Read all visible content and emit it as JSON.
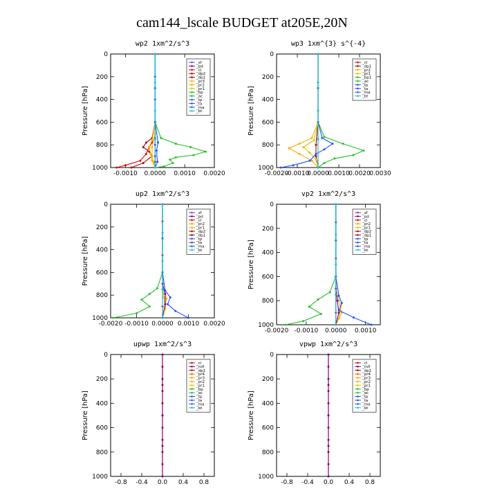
{
  "title": "cam144_lscale  BUDGET at205E,20N",
  "chart_data": [
    {
      "type": "line",
      "title": "wp2  1xm^2/s^3",
      "ylabel": "Pressure [hPa]",
      "xlim": [
        -0.0015,
        0.002
      ],
      "ylim": [
        1000,
        0
      ],
      "xticks": [
        -0.001,
        0,
        0.001,
        0.002
      ],
      "xtick_labels": [
        "-0.0010",
        "0.0000",
        "0.0010",
        "0.0020"
      ],
      "yticks": [
        0,
        200,
        400,
        600,
        800,
        1000
      ],
      "ytick_labels": [
        "0",
        "200",
        "400",
        "600",
        "800",
        "1000"
      ],
      "legend": [
        "_sf",
        "_pd",
        "_cl",
        "_dp2",
        "_dp1",
        "_pr3",
        "_pr2",
        "_pr1",
        "_bp",
        "_ac",
        "_tp",
        "_ta",
        "_ma",
        "_bt"
      ],
      "legend_position": "top-right",
      "series": [
        {
          "name": "_pd",
          "color": "#800080",
          "x": [
            0,
            0,
            0,
            0,
            0,
            0,
            0,
            0,
            0
          ],
          "y": [
            0,
            200,
            400,
            600,
            700,
            800,
            900,
            950,
            1000
          ]
        },
        {
          "name": "_cl",
          "color": "#e00000",
          "x": [
            0,
            0,
            0,
            0,
            -0.0001,
            -0.0002,
            -0.0003,
            -0.0005,
            -0.001,
            -0.0013
          ],
          "y": [
            0,
            300,
            600,
            740,
            780,
            820,
            880,
            940,
            980,
            1000
          ]
        },
        {
          "name": "_dp2",
          "color": "#b00000",
          "x": [
            0,
            0,
            0,
            -0.0001,
            -0.0003,
            -0.0004,
            -0.0002,
            -0.0001,
            -0.0004,
            -0.0008
          ],
          "y": [
            0,
            300,
            600,
            740,
            780,
            820,
            860,
            900,
            960,
            1000
          ]
        },
        {
          "name": "_pr3",
          "color": "#ffa500",
          "x": [
            0,
            0,
            0,
            -0.0001,
            -0.0002,
            -0.00015,
            -0.0001,
            0
          ],
          "y": [
            0,
            300,
            600,
            760,
            820,
            880,
            940,
            1000
          ]
        },
        {
          "name": "_pr2",
          "color": "#e0c000",
          "x": [
            0,
            0,
            0,
            -0.0001,
            -0.0001,
            0
          ],
          "y": [
            0,
            300,
            700,
            820,
            900,
            1000
          ]
        },
        {
          "name": "_pr1",
          "color": "#20c020",
          "x": [
            0,
            0,
            0,
            0.0002,
            0.0007,
            0.0012,
            0.0017,
            0.0013,
            0.0007,
            0.0005,
            0.0006,
            0.0003,
            0
          ],
          "y": [
            0,
            300,
            600,
            740,
            790,
            820,
            860,
            890,
            910,
            930,
            960,
            990,
            1000
          ]
        },
        {
          "name": "_ac",
          "color": "#1e50ff",
          "x": [
            0,
            0,
            0,
            0.0001,
            5e-05,
            8e-05,
            0
          ],
          "y": [
            0,
            300,
            600,
            780,
            850,
            950,
            1000
          ]
        },
        {
          "name": "_bt",
          "color": "#00c8e8",
          "x": [
            0,
            0,
            0,
            0,
            0
          ],
          "y": [
            0,
            250,
            500,
            750,
            1000
          ]
        }
      ]
    },
    {
      "type": "line",
      "title": "wp3  1xm^{3} s^{-4}",
      "ylabel": "Pressure [hPa]",
      "xlim": [
        -0.002,
        0.003
      ],
      "ylim": [
        1000,
        0
      ],
      "xticks": [
        -0.002,
        -0.001,
        0,
        0.001,
        0.002,
        0.003
      ],
      "xtick_labels": [
        "-0.0020",
        "-0.0010",
        "0.0000",
        "0.0010",
        "0.0020",
        "0.0030"
      ],
      "yticks": [
        0,
        200,
        400,
        600,
        800,
        1000
      ],
      "ytick_labels": [
        "0",
        "200",
        "400",
        "600",
        "800",
        "1000"
      ],
      "legend": [
        "_cl",
        "_dp1",
        "_pr2",
        "_pr1",
        "_bp1",
        "_ac",
        "_tp",
        "_ta",
        "_ma",
        "_bt"
      ],
      "legend_position": "top-right",
      "series": [
        {
          "name": "_cl",
          "color": "#e00000",
          "x": [
            0,
            0,
            0,
            0,
            0
          ],
          "y": [
            0,
            250,
            500,
            750,
            1000
          ]
        },
        {
          "name": "_dp1",
          "color": "#b00000",
          "x": [
            0,
            0,
            0,
            -0.0001,
            -0.0001,
            0
          ],
          "y": [
            0,
            300,
            600,
            800,
            900,
            1000
          ]
        },
        {
          "name": "_pr2",
          "color": "#ffa500",
          "x": [
            0,
            0,
            0,
            -0.0003,
            -0.0009,
            -0.0014,
            -0.0009,
            -0.0003,
            0
          ],
          "y": [
            0,
            300,
            600,
            740,
            790,
            830,
            880,
            940,
            1000
          ]
        },
        {
          "name": "_pr1",
          "color": "#e0c000",
          "x": [
            0,
            0,
            0,
            -0.0002,
            -0.0007,
            -0.0004,
            -0.0001,
            0
          ],
          "y": [
            0,
            300,
            600,
            760,
            820,
            870,
            930,
            1000
          ]
        },
        {
          "name": "_bp1",
          "color": "#20c020",
          "x": [
            0,
            0,
            0,
            0.0003,
            0.0012,
            0.0022,
            0.0017,
            0.0008,
            0.0003,
            0
          ],
          "y": [
            0,
            300,
            600,
            730,
            790,
            850,
            890,
            920,
            960,
            1000
          ]
        },
        {
          "name": "_ac",
          "color": "#1e50ff",
          "x": [
            0,
            0,
            0,
            0.0002,
            0.0007,
            0.0003,
            -0.0001,
            -0.0004,
            -0.0012,
            -0.0018
          ],
          "y": [
            0,
            300,
            600,
            740,
            790,
            840,
            880,
            940,
            980,
            1000
          ]
        },
        {
          "name": "_tp",
          "color": "#00c8e8",
          "x": [
            0,
            0,
            0,
            0,
            0
          ],
          "y": [
            0,
            250,
            500,
            750,
            1000
          ]
        }
      ]
    },
    {
      "type": "line",
      "title": "up2  1xm^2/s^3",
      "ylabel": "Pressure [hPa]",
      "xlim": [
        -0.002,
        0.002
      ],
      "ylim": [
        1000,
        0
      ],
      "xticks": [
        -0.002,
        -0.001,
        0,
        0.001,
        0.002
      ],
      "xtick_labels": [
        "-0.0020",
        "-0.0010",
        "0.0000",
        "0.0010",
        "0.0020"
      ],
      "yticks": [
        0,
        200,
        400,
        600,
        800,
        1000
      ],
      "ytick_labels": [
        "0",
        "200",
        "400",
        "600",
        "800",
        "1000"
      ],
      "legend": [
        "_sf",
        "_pd",
        "_cl",
        "_pr2",
        "_pr1",
        "_dp2",
        "_dp1",
        "_tp",
        "_ta",
        "_ma",
        "_bt"
      ],
      "legend_position": "top-right",
      "series": [
        {
          "name": "_cl",
          "color": "#e00000",
          "x": [
            0,
            0,
            0,
            0,
            0,
            0,
            0,
            0
          ],
          "y": [
            0,
            150,
            300,
            450,
            600,
            750,
            900,
            1000
          ]
        },
        {
          "name": "_pr2",
          "color": "#ffa500",
          "x": [
            0,
            0,
            0,
            0.0001,
            0.00015,
            0.0001,
            0
          ],
          "y": [
            0,
            300,
            600,
            760,
            830,
            920,
            1000
          ]
        },
        {
          "name": "_pr1",
          "color": "#e0c000",
          "x": [
            0,
            0,
            0,
            5e-05,
            0.0001,
            0
          ],
          "y": [
            0,
            300,
            700,
            820,
            900,
            1000
          ]
        },
        {
          "name": "_dp2",
          "color": "#800080",
          "x": [
            0,
            0,
            0,
            0.0001,
            0.0001,
            0
          ],
          "y": [
            0,
            300,
            700,
            790,
            880,
            1000
          ]
        },
        {
          "name": "_dp1",
          "color": "#20c020",
          "x": [
            0,
            0,
            0,
            -0.0002,
            -0.0005,
            -0.0008,
            -0.0005,
            -0.001,
            -0.0019
          ],
          "y": [
            0,
            300,
            600,
            740,
            790,
            840,
            900,
            960,
            1000
          ]
        },
        {
          "name": "_tp",
          "color": "#1e50ff",
          "x": [
            0,
            0,
            0,
            0.0001,
            0.0003,
            0.0002,
            0.0005,
            0.001
          ],
          "y": [
            0,
            300,
            600,
            760,
            820,
            880,
            940,
            1000
          ]
        },
        {
          "name": "_bt",
          "color": "#00c8e8",
          "x": [
            0,
            0,
            0,
            0,
            0
          ],
          "y": [
            0,
            250,
            500,
            750,
            1000
          ]
        }
      ]
    },
    {
      "type": "line",
      "title": "vp2  1xm^2/s^3",
      "ylabel": "Pressure [hPa]",
      "xlim": [
        -0.002,
        0.0015
      ],
      "ylim": [
        1000,
        0
      ],
      "xticks": [
        -0.002,
        -0.001,
        0,
        0.001
      ],
      "xtick_labels": [
        "-0.0020",
        "-0.0010",
        "0.0000",
        "0.0010"
      ],
      "yticks": [
        0,
        200,
        400,
        600,
        800,
        1000
      ],
      "ytick_labels": [
        "0",
        "200",
        "400",
        "600",
        "800",
        "1000"
      ],
      "legend": [
        "_sf",
        "_pd",
        "_cl",
        "_pr2",
        "_pr1",
        "_dp2",
        "_dp1",
        "_tp",
        "_ta",
        "_ma",
        "_bt"
      ],
      "legend_position": "top-right",
      "series": [
        {
          "name": "_cl",
          "color": "#e00000",
          "x": [
            0,
            0,
            0,
            0,
            0,
            0,
            0,
            0
          ],
          "y": [
            0,
            150,
            300,
            450,
            600,
            750,
            900,
            1000
          ]
        },
        {
          "name": "_pr2",
          "color": "#ffa500",
          "x": [
            0,
            0,
            0,
            0.0001,
            0.0002,
            0.00015,
            0.0001,
            0
          ],
          "y": [
            0,
            300,
            600,
            760,
            820,
            880,
            950,
            1000
          ]
        },
        {
          "name": "_pr1",
          "color": "#e0c000",
          "x": [
            0,
            0,
            0,
            0.0001,
            0.0002,
            0
          ],
          "y": [
            0,
            300,
            700,
            800,
            900,
            1000
          ]
        },
        {
          "name": "_dp2",
          "color": "#800080",
          "x": [
            0,
            0,
            0,
            5e-05,
            0.0001,
            0
          ],
          "y": [
            0,
            300,
            700,
            800,
            900,
            1000
          ]
        },
        {
          "name": "_dp1",
          "color": "#20c020",
          "x": [
            0,
            0,
            0,
            -0.0002,
            -0.0006,
            -0.0009,
            -0.0005,
            -0.0011,
            -0.0017
          ],
          "y": [
            0,
            300,
            600,
            730,
            790,
            850,
            910,
            970,
            1000
          ]
        },
        {
          "name": "_tp",
          "color": "#1e50ff",
          "x": [
            0,
            0,
            0,
            0.0001,
            0.0002,
            0.0001,
            0.0006,
            0.0012
          ],
          "y": [
            0,
            300,
            600,
            760,
            820,
            880,
            940,
            1000
          ]
        },
        {
          "name": "_bt",
          "color": "#00c8e8",
          "x": [
            0,
            0,
            0,
            0,
            0
          ],
          "y": [
            0,
            250,
            500,
            750,
            1000
          ]
        }
      ]
    },
    {
      "type": "line",
      "title": "upwp  1xm^2/s^3",
      "ylabel": "Pressure [hPa]",
      "xlim": [
        -1,
        1
      ],
      "ylim": [
        1000,
        0
      ],
      "xticks": [
        -0.8,
        -0.4,
        0,
        0.4,
        0.8
      ],
      "xtick_labels": [
        "-0.8",
        "-0.4",
        "0.0",
        "0.4",
        "0.8"
      ],
      "yticks": [
        0,
        200,
        400,
        600,
        800,
        1000
      ],
      "ytick_labels": [
        "0",
        "200",
        "400",
        "600",
        "800",
        "1000"
      ],
      "legend": [
        "_cl",
        "_mfl",
        "_dp1",
        "_pr4",
        "_pr3",
        "_pr2",
        "_pr1",
        "_bp",
        "_ac",
        "_tp",
        "_ta",
        "_ma",
        "_bt"
      ],
      "legend_position": "top-right",
      "series": [
        {
          "name": "_dp1",
          "color": "#b00000",
          "x": [
            0,
            0,
            0,
            0,
            0,
            0,
            0,
            0,
            0,
            0,
            0
          ],
          "y": [
            0,
            100,
            200,
            300,
            400,
            500,
            600,
            700,
            800,
            900,
            1000
          ]
        },
        {
          "name": "_cl",
          "color": "#800080",
          "x": [
            0,
            0,
            0,
            0,
            0
          ],
          "y": [
            0,
            250,
            500,
            750,
            1000
          ]
        }
      ]
    },
    {
      "type": "line",
      "title": "vpwp  1xm^2/s^3",
      "ylabel": "Pressure [hPa]",
      "xlim": [
        -1,
        1
      ],
      "ylim": [
        1000,
        0
      ],
      "xticks": [
        -0.8,
        -0.4,
        0,
        0.4,
        0.8
      ],
      "xtick_labels": [
        "-0.8",
        "-0.4",
        "0.0",
        "0.4",
        "0.8"
      ],
      "yticks": [
        0,
        200,
        400,
        600,
        800,
        1000
      ],
      "ytick_labels": [
        "0",
        "200",
        "400",
        "600",
        "800",
        "1000"
      ],
      "legend": [
        "_cl",
        "_mfl",
        "_dp1",
        "_pr4",
        "_pr3",
        "_pr2",
        "_pr1",
        "_bp",
        "_ac",
        "_tp",
        "_ta",
        "_ma",
        "_bt"
      ],
      "legend_position": "top-right",
      "series": [
        {
          "name": "_dp1",
          "color": "#b00000",
          "x": [
            0,
            0,
            0,
            0,
            0,
            0,
            0,
            0,
            0,
            0,
            0
          ],
          "y": [
            0,
            100,
            200,
            300,
            400,
            500,
            600,
            700,
            800,
            900,
            1000
          ]
        },
        {
          "name": "_cl",
          "color": "#800080",
          "x": [
            0,
            0,
            0,
            0,
            0
          ],
          "y": [
            0,
            250,
            500,
            750,
            1000
          ]
        }
      ]
    }
  ],
  "legend_colors": {
    "_sf": "#7a40c0",
    "_pd": "#800080",
    "_cl": "#e00000",
    "_mfl": "#800080",
    "_dp2": "#b00000",
    "_dp1": "#b00000",
    "_dp4": "#b00000",
    "_pr4": "#ff6000",
    "_pr3": "#ffa500",
    "_pr2": "#ffa500",
    "_pr1": "#e0c000",
    "_bp": "#20c020",
    "_bp1": "#20c020",
    "_ac": "#20c020",
    "_tp": "#1e50ff",
    "_ta": "#1e50ff",
    "_ma": "#5050d0",
    "_bt": "#00c8e8"
  }
}
